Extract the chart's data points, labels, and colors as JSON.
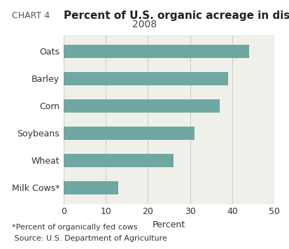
{
  "title": "Percent of U.S. organic acreage in district states",
  "subtitle": "2008",
  "chart_label": "CHART 4",
  "categories": [
    "Oats",
    "Barley",
    "Corn",
    "Soybeans",
    "Wheat",
    "Milk Cows*"
  ],
  "values": [
    44,
    39,
    37,
    31,
    26,
    13
  ],
  "bar_color": "#6fa8a0",
  "background_color": "#f0f0eb",
  "xlim": [
    0,
    50
  ],
  "xticks": [
    0,
    10,
    20,
    30,
    40,
    50
  ],
  "xlabel": "Percent",
  "footnote1": "*Percent of organically fed cows",
  "footnote2": " Source: U.S. Department of Agriculture",
  "title_fontsize": 11,
  "subtitle_fontsize": 10,
  "chart_label_fontsize": 9,
  "tick_fontsize": 9,
  "label_fontsize": 9,
  "footnote_fontsize": 8,
  "bar_height": 0.5,
  "grid_color": "#cccccc"
}
